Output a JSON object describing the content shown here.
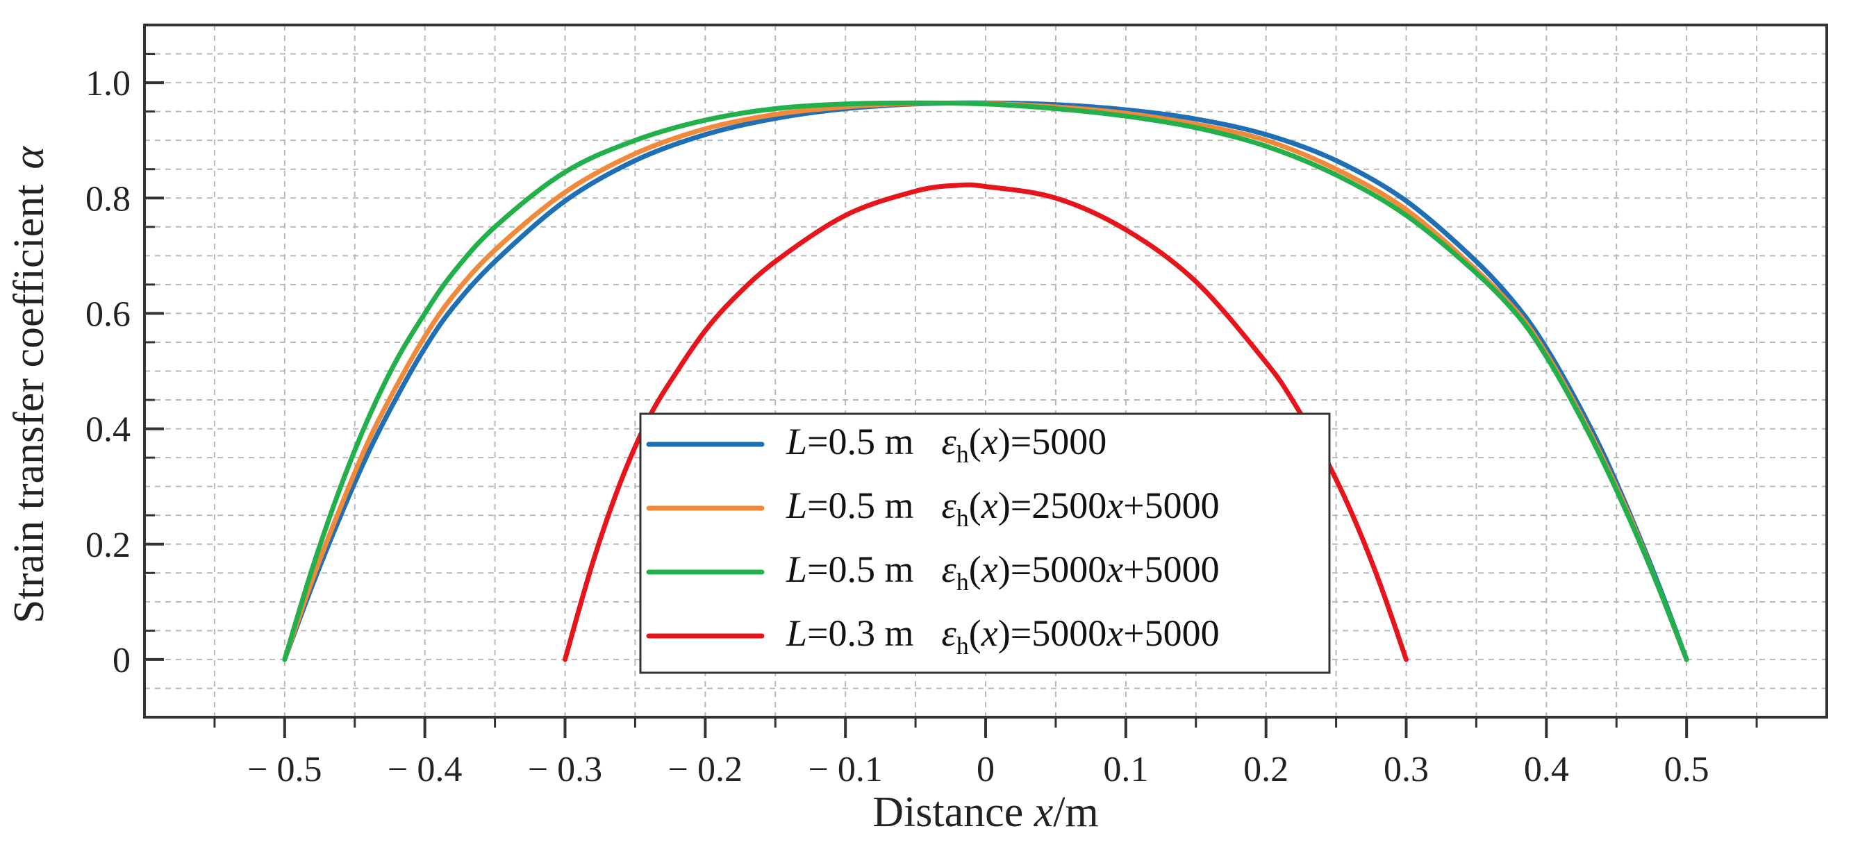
{
  "chart_data": {
    "type": "line",
    "xlabel_prefix": "Distance ",
    "xlabel_var": "x",
    "xlabel_suffix": "/m",
    "ylabel_text": "Strain transfer coefficient",
    "ylabel_symbol": "α",
    "xlim": [
      -0.6,
      0.6
    ],
    "ylim": [
      -0.1,
      1.1
    ],
    "x_ticks": [
      -0.5,
      -0.4,
      -0.3,
      -0.2,
      -0.1,
      0,
      0.1,
      0.2,
      0.3,
      0.4,
      0.5
    ],
    "x_tick_labels": [
      "− 0.5",
      "− 0.4",
      "− 0.3",
      "− 0.2",
      "− 0.1",
      "0",
      "0.1",
      "0.2",
      "0.3",
      "0.4",
      "0.5"
    ],
    "y_ticks": [
      0,
      0.2,
      0.4,
      0.6,
      0.8,
      1.0
    ],
    "y_tick_labels": [
      "0",
      "0.2",
      "0.4",
      "0.6",
      "0.8",
      "1.0"
    ],
    "grid": true,
    "legend_position": "bottom-center",
    "series": [
      {
        "name": "L=0.5 m ε_h(x)=5000",
        "color": "#1f6fb4",
        "legend": {
          "L": "L",
          "L_rest": "=0.5 m",
          "eps": "ε",
          "sub": "h",
          "arg_open": "(",
          "arg": "x",
          "arg_close": ")",
          "rhs": "=5000",
          "rhs_var": "",
          "rhs_tail": ""
        },
        "x": [
          -0.5,
          -0.48,
          -0.46,
          -0.44,
          -0.42,
          -0.4,
          -0.38,
          -0.35,
          -0.3,
          -0.25,
          -0.2,
          -0.15,
          -0.1,
          -0.05,
          0,
          0.05,
          0.1,
          0.15,
          0.2,
          0.25,
          0.3,
          0.35,
          0.38,
          0.4,
          0.42,
          0.44,
          0.46,
          0.48,
          0.5
        ],
        "y": [
          0,
          0.13,
          0.25,
          0.36,
          0.455,
          0.54,
          0.61,
          0.69,
          0.795,
          0.865,
          0.91,
          0.938,
          0.955,
          0.963,
          0.965,
          0.962,
          0.953,
          0.937,
          0.91,
          0.865,
          0.795,
          0.69,
          0.61,
          0.54,
          0.455,
          0.36,
          0.25,
          0.13,
          0
        ]
      },
      {
        "name": "L=0.5 m ε_h(x)=2500x+5000",
        "color": "#f08a3a",
        "legend": {
          "L": "L",
          "L_rest": "=0.5 m",
          "eps": "ε",
          "sub": "h",
          "arg_open": "(",
          "arg": "x",
          "arg_close": ")",
          "rhs": "=2500",
          "rhs_var": "x",
          "rhs_tail": "+5000"
        },
        "x": [
          -0.5,
          -0.48,
          -0.46,
          -0.44,
          -0.42,
          -0.4,
          -0.38,
          -0.35,
          -0.3,
          -0.25,
          -0.2,
          -0.15,
          -0.1,
          -0.05,
          0,
          0.05,
          0.1,
          0.15,
          0.2,
          0.25,
          0.3,
          0.35,
          0.38,
          0.4,
          0.42,
          0.44,
          0.46,
          0.48,
          0.5
        ],
        "y": [
          0,
          0.14,
          0.265,
          0.38,
          0.475,
          0.56,
          0.63,
          0.71,
          0.81,
          0.877,
          0.92,
          0.945,
          0.958,
          0.964,
          0.964,
          0.958,
          0.947,
          0.928,
          0.9,
          0.85,
          0.78,
          0.675,
          0.6,
          0.53,
          0.445,
          0.35,
          0.245,
          0.125,
          0
        ]
      },
      {
        "name": "L=0.5 m ε_h(x)=5000x+5000",
        "color": "#22b04b",
        "legend": {
          "L": "L",
          "L_rest": "=0.5 m",
          "eps": "ε",
          "sub": "h",
          "arg_open": "(",
          "arg": "x",
          "arg_close": ")",
          "rhs": "=5000",
          "rhs_var": "x",
          "rhs_tail": "+5000"
        },
        "x": [
          -0.5,
          -0.48,
          -0.46,
          -0.44,
          -0.42,
          -0.4,
          -0.38,
          -0.35,
          -0.3,
          -0.25,
          -0.2,
          -0.15,
          -0.1,
          -0.05,
          0,
          0.05,
          0.1,
          0.15,
          0.2,
          0.25,
          0.3,
          0.35,
          0.38,
          0.4,
          0.42,
          0.44,
          0.46,
          0.48,
          0.5
        ],
        "y": [
          0,
          0.16,
          0.3,
          0.42,
          0.52,
          0.6,
          0.67,
          0.75,
          0.845,
          0.9,
          0.935,
          0.955,
          0.963,
          0.965,
          0.963,
          0.955,
          0.942,
          0.922,
          0.89,
          0.84,
          0.77,
          0.67,
          0.595,
          0.525,
          0.44,
          0.345,
          0.24,
          0.125,
          0
        ]
      },
      {
        "name": "L=0.3 m ε_h(x)=5000x+5000",
        "color": "#e8141b",
        "legend": {
          "L": "L",
          "L_rest": "=0.3 m",
          "eps": "ε",
          "sub": "h",
          "arg_open": "(",
          "arg": "x",
          "arg_close": ")",
          "rhs": "=5000",
          "rhs_var": "x",
          "rhs_tail": "+5000"
        },
        "x": [
          -0.3,
          -0.28,
          -0.26,
          -0.24,
          -0.22,
          -0.2,
          -0.18,
          -0.15,
          -0.1,
          -0.05,
          -0.02,
          0,
          0.05,
          0.1,
          0.15,
          0.2,
          0.22,
          0.24,
          0.26,
          0.28,
          0.3
        ],
        "y": [
          0,
          0.17,
          0.31,
          0.42,
          0.5,
          0.57,
          0.625,
          0.69,
          0.77,
          0.812,
          0.822,
          0.82,
          0.8,
          0.745,
          0.655,
          0.515,
          0.445,
          0.36,
          0.26,
          0.14,
          0
        ]
      }
    ]
  }
}
